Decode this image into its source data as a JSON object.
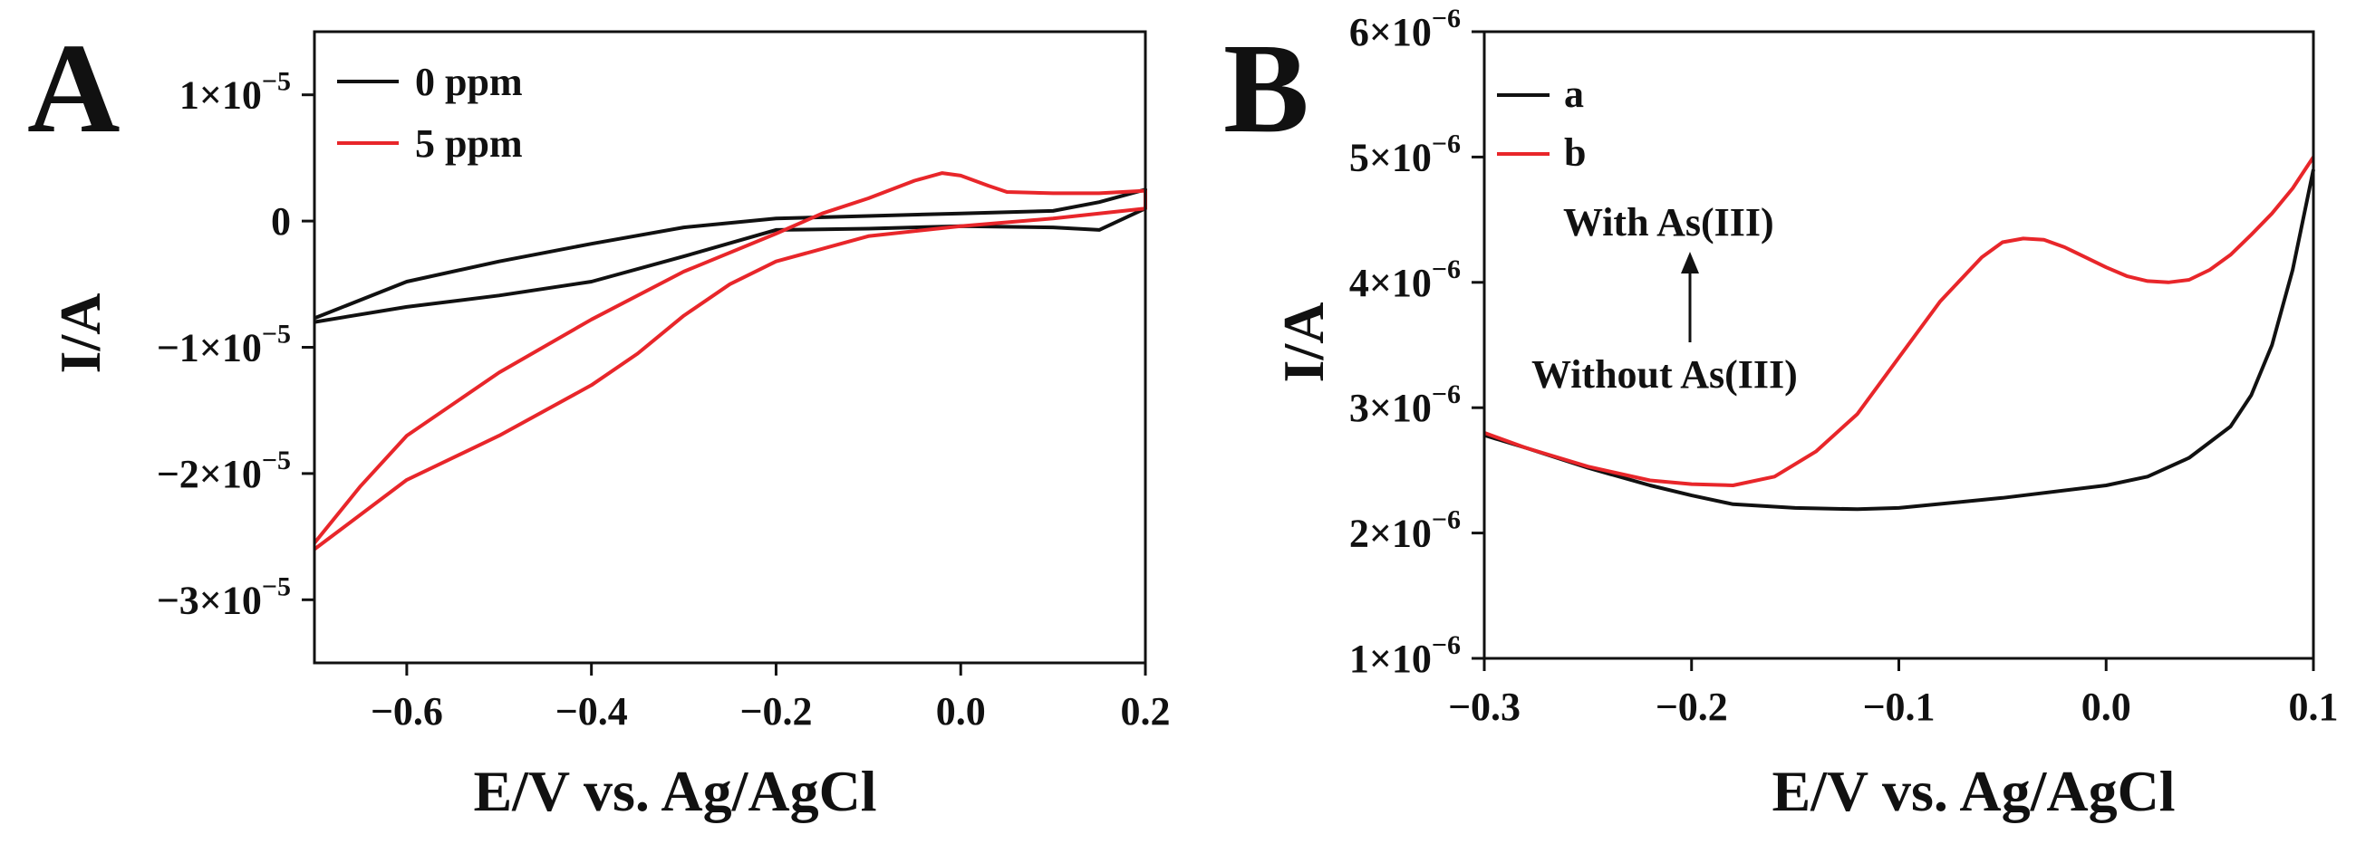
{
  "chart_data": [
    {
      "panel_label": "A",
      "type": "line",
      "xlabel": "E/V vs. Ag/AgCl",
      "ylabel": "I/A",
      "xlim": [
        -0.7,
        0.2
      ],
      "ylim": [
        -3.5e-05,
        1.5e-05
      ],
      "x_ticks": [
        -0.6,
        -0.4,
        -0.2,
        0.0,
        0.2
      ],
      "x_tick_labels": [
        "−0.6",
        "−0.4",
        "−0.2",
        "0.0",
        "0.2"
      ],
      "y_ticks": [
        1e-05,
        0,
        -1e-05,
        -2e-05,
        -3e-05
      ],
      "y_tick_labels": [
        {
          "mant": "1×10",
          "exp": "−5"
        },
        {
          "mant": "0",
          "exp": ""
        },
        {
          "mant": "−1×10",
          "exp": "−5"
        },
        {
          "mant": "−2×10",
          "exp": "−5"
        },
        {
          "mant": "−3×10",
          "exp": "−5"
        }
      ],
      "legend_position": "top-left",
      "series": [
        {
          "name": "0 ppm",
          "color": "#111111",
          "x": [
            -0.7,
            -0.6,
            -0.5,
            -0.4,
            -0.3,
            -0.2,
            -0.1,
            0.0,
            0.1,
            0.15,
            0.2,
            0.2,
            0.15,
            0.1,
            0.0,
            -0.1,
            -0.2,
            -0.3,
            -0.4,
            -0.5,
            -0.6,
            -0.7
          ],
          "y": [
            -7.7e-06,
            -4.8e-06,
            -3.2e-06,
            -1.8e-06,
            -5e-07,
            2e-07,
            4e-07,
            6e-07,
            8e-07,
            1.5e-06,
            2.5e-06,
            1e-06,
            -7e-07,
            -5e-07,
            -4e-07,
            -6e-07,
            -7e-07,
            -2.8e-06,
            -4.8e-06,
            -5.9e-06,
            -6.8e-06,
            -8e-06
          ]
        },
        {
          "name": "5 ppm",
          "color": "#e8262a",
          "x": [
            -0.7,
            -0.65,
            -0.6,
            -0.5,
            -0.4,
            -0.3,
            -0.2,
            -0.15,
            -0.1,
            -0.05,
            -0.02,
            0.0,
            0.03,
            0.05,
            0.1,
            0.15,
            0.2,
            0.2,
            0.1,
            0.0,
            -0.1,
            -0.2,
            -0.25,
            -0.3,
            -0.35,
            -0.4,
            -0.5,
            -0.6,
            -0.7
          ],
          "y": [
            -2.55e-05,
            -2.1e-05,
            -1.7e-05,
            -1.2e-05,
            -7.8e-06,
            -4e-06,
            -1e-06,
            6e-07,
            1.8e-06,
            3.2e-06,
            3.8e-06,
            3.6e-06,
            2.8e-06,
            2.3e-06,
            2.2e-06,
            2.2e-06,
            2.4e-06,
            1e-06,
            2e-07,
            -4e-07,
            -1.2e-06,
            -3.2e-06,
            -5e-06,
            -7.5e-06,
            -1.05e-05,
            -1.3e-05,
            -1.7e-05,
            -2.05e-05,
            -2.6e-05
          ]
        }
      ]
    },
    {
      "panel_label": "B",
      "type": "line",
      "xlabel": "E/V vs. Ag/AgCl",
      "ylabel": "I/A",
      "xlim": [
        -0.3,
        0.1
      ],
      "ylim": [
        1e-06,
        6e-06
      ],
      "x_ticks": [
        -0.3,
        -0.2,
        -0.1,
        0.0,
        0.1
      ],
      "x_tick_labels": [
        "−0.3",
        "−0.2",
        "−0.1",
        "0.0",
        "0.1"
      ],
      "y_ticks": [
        6e-06,
        5e-06,
        4e-06,
        3e-06,
        2e-06,
        1e-06
      ],
      "y_tick_labels": [
        {
          "mant": "6×10",
          "exp": "−6"
        },
        {
          "mant": "5×10",
          "exp": "−6"
        },
        {
          "mant": "4×10",
          "exp": "−6"
        },
        {
          "mant": "3×10",
          "exp": "−6"
        },
        {
          "mant": "2×10",
          "exp": "−6"
        },
        {
          "mant": "1×10",
          "exp": "−6"
        }
      ],
      "legend_position": "top-left",
      "annotations": {
        "with": "With  As(III)",
        "without": "Without  As(III)"
      },
      "series": [
        {
          "name": "a",
          "color": "#111111",
          "x": [
            -0.3,
            -0.28,
            -0.25,
            -0.22,
            -0.2,
            -0.18,
            -0.15,
            -0.12,
            -0.1,
            -0.05,
            0.0,
            0.02,
            0.04,
            0.06,
            0.07,
            0.08,
            0.09,
            0.1
          ],
          "y": [
            2.78e-06,
            2.68e-06,
            2.52e-06,
            2.38e-06,
            2.3e-06,
            2.23e-06,
            2.2e-06,
            2.19e-06,
            2.2e-06,
            2.28e-06,
            2.38e-06,
            2.45e-06,
            2.6e-06,
            2.85e-06,
            3.1e-06,
            3.5e-06,
            4.1e-06,
            4.9e-06
          ]
        },
        {
          "name": "b",
          "color": "#e8262a",
          "x": [
            -0.3,
            -0.28,
            -0.25,
            -0.22,
            -0.2,
            -0.18,
            -0.16,
            -0.14,
            -0.12,
            -0.1,
            -0.08,
            -0.06,
            -0.05,
            -0.04,
            -0.03,
            -0.02,
            -0.01,
            0.0,
            0.01,
            0.02,
            0.03,
            0.04,
            0.05,
            0.06,
            0.07,
            0.08,
            0.09,
            0.1
          ],
          "y": [
            2.8e-06,
            2.68e-06,
            2.53e-06,
            2.42e-06,
            2.39e-06,
            2.38e-06,
            2.45e-06,
            2.65e-06,
            2.95e-06,
            3.4e-06,
            3.85e-06,
            4.2e-06,
            4.32e-06,
            4.35e-06,
            4.34e-06,
            4.28e-06,
            4.2e-06,
            4.12e-06,
            4.05e-06,
            4.01e-06,
            4e-06,
            4.02e-06,
            4.1e-06,
            4.22e-06,
            4.38e-06,
            4.55e-06,
            4.75e-06,
            5e-06
          ]
        }
      ]
    }
  ]
}
